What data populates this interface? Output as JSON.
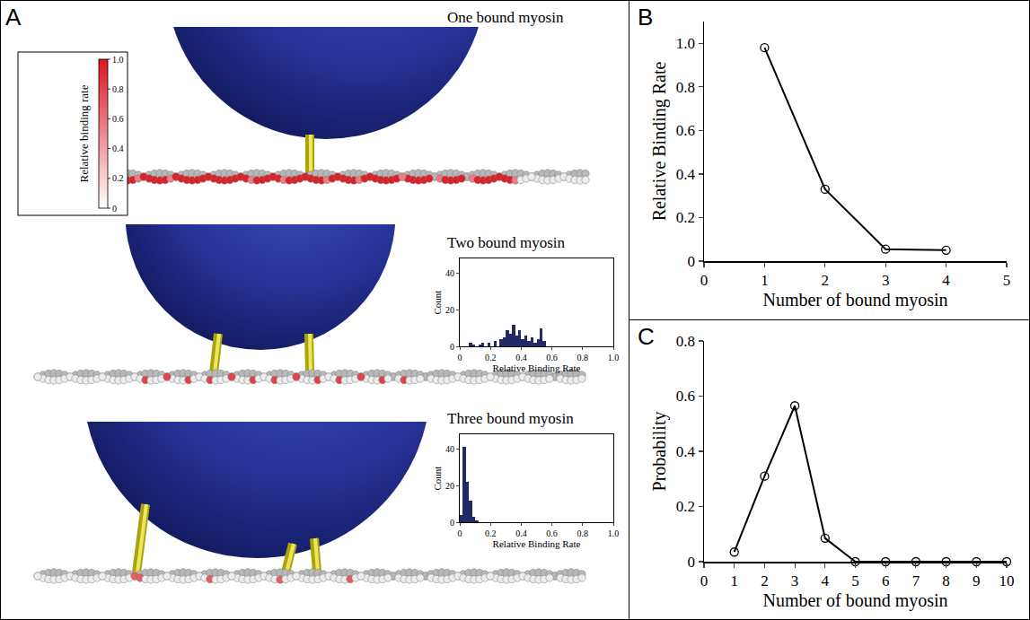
{
  "chart_data": [
    {
      "type": "illustration",
      "panel": "A",
      "colorbar": {
        "title": "Relative binding rate",
        "range": [
          0,
          1
        ],
        "ticks": [
          0,
          0.2,
          0.4,
          0.6,
          0.8,
          {
            "value": 1,
            "label": "1.0"
          }
        ]
      },
      "scenes": [
        {
          "title": "One bound myosin",
          "bound": 1
        },
        {
          "title": "Two bound myosin",
          "bound": 2,
          "inset": {
            "type": "histogram",
            "x_label": "Relative Binding Rate",
            "y_label": "Count",
            "bins": [
              0,
              0.02,
              0.04,
              0.06,
              0.08,
              0.1,
              0.12,
              0.14,
              0.16,
              0.18,
              0.2,
              0.22,
              0.24,
              0.26,
              0.28,
              0.3,
              0.32,
              0.34,
              0.36,
              0.38,
              0.4,
              0.42,
              0.44,
              0.46,
              0.48,
              0.5,
              0.52,
              0.54,
              0.56
            ],
            "counts": [
              0,
              0,
              0,
              2,
              1,
              0,
              1,
              2,
              0,
              2,
              0,
              3,
              0,
              4,
              5,
              9,
              7,
              12,
              6,
              9,
              4,
              6,
              3,
              5,
              2,
              4,
              10,
              3
            ],
            "color": "#1f2a66",
            "xlim": [
              0,
              1
            ],
            "xticks": [
              0,
              0.2,
              0.4,
              0.6,
              0.8,
              {
                "value": 1,
                "label": "1.0"
              }
            ],
            "ylim": [
              0,
              48
            ],
            "yticks": [
              0,
              20,
              40
            ],
            "grid": false
          }
        },
        {
          "title": "Three bound myosin",
          "bound": 3,
          "inset": {
            "type": "histogram",
            "x_label": "Relative Binding Rate",
            "y_label": "Count",
            "bins": [
              0,
              0.02,
              0.04,
              0.06,
              0.08,
              0.1,
              0.12
            ],
            "counts": [
              4,
              41,
              22,
              12,
              3,
              1
            ],
            "color": "#1f2a66",
            "xlim": [
              0,
              1
            ],
            "xticks": [
              0,
              0.2,
              0.4,
              0.6,
              0.8,
              {
                "value": 1,
                "label": "1.0"
              }
            ],
            "ylim": [
              0,
              48
            ],
            "yticks": [
              0,
              20,
              40
            ],
            "grid": false
          }
        }
      ]
    },
    {
      "type": "line",
      "panel": "B",
      "x_label": "Number of bound myosin",
      "y_label": "Relative Binding Rate",
      "x": [
        1,
        2,
        3,
        4
      ],
      "values": [
        0.98,
        0.33,
        0.055,
        0.05
      ],
      "color": "#000000",
      "marker": "open-circle",
      "line_style": "solid",
      "xlim": [
        0,
        5
      ],
      "xticks": [
        0,
        1,
        2,
        3,
        4,
        5
      ],
      "ylim": [
        0,
        1.1
      ],
      "yticks": [
        0,
        0.2,
        0.4,
        0.6,
        0.8,
        {
          "value": 1,
          "label": "1.0"
        }
      ],
      "grid": false
    },
    {
      "type": "line",
      "panel": "C",
      "x_label": "Number of bound myosin",
      "y_label": "Probability",
      "x": [
        1,
        2,
        3,
        4,
        5,
        6,
        7,
        8,
        9,
        10
      ],
      "values": [
        0.035,
        0.31,
        0.565,
        0.085,
        0,
        0,
        0,
        0,
        0,
        0
      ],
      "color": "#000000",
      "marker": "open-circle",
      "line_style": "solid",
      "xlim": [
        0,
        10
      ],
      "xticks": [
        0,
        1,
        2,
        3,
        4,
        5,
        6,
        7,
        8,
        9,
        10
      ],
      "ylim": [
        0,
        0.8
      ],
      "yticks": [
        0,
        0.2,
        0.4,
        0.6,
        0.8
      ],
      "grid": false
    }
  ]
}
